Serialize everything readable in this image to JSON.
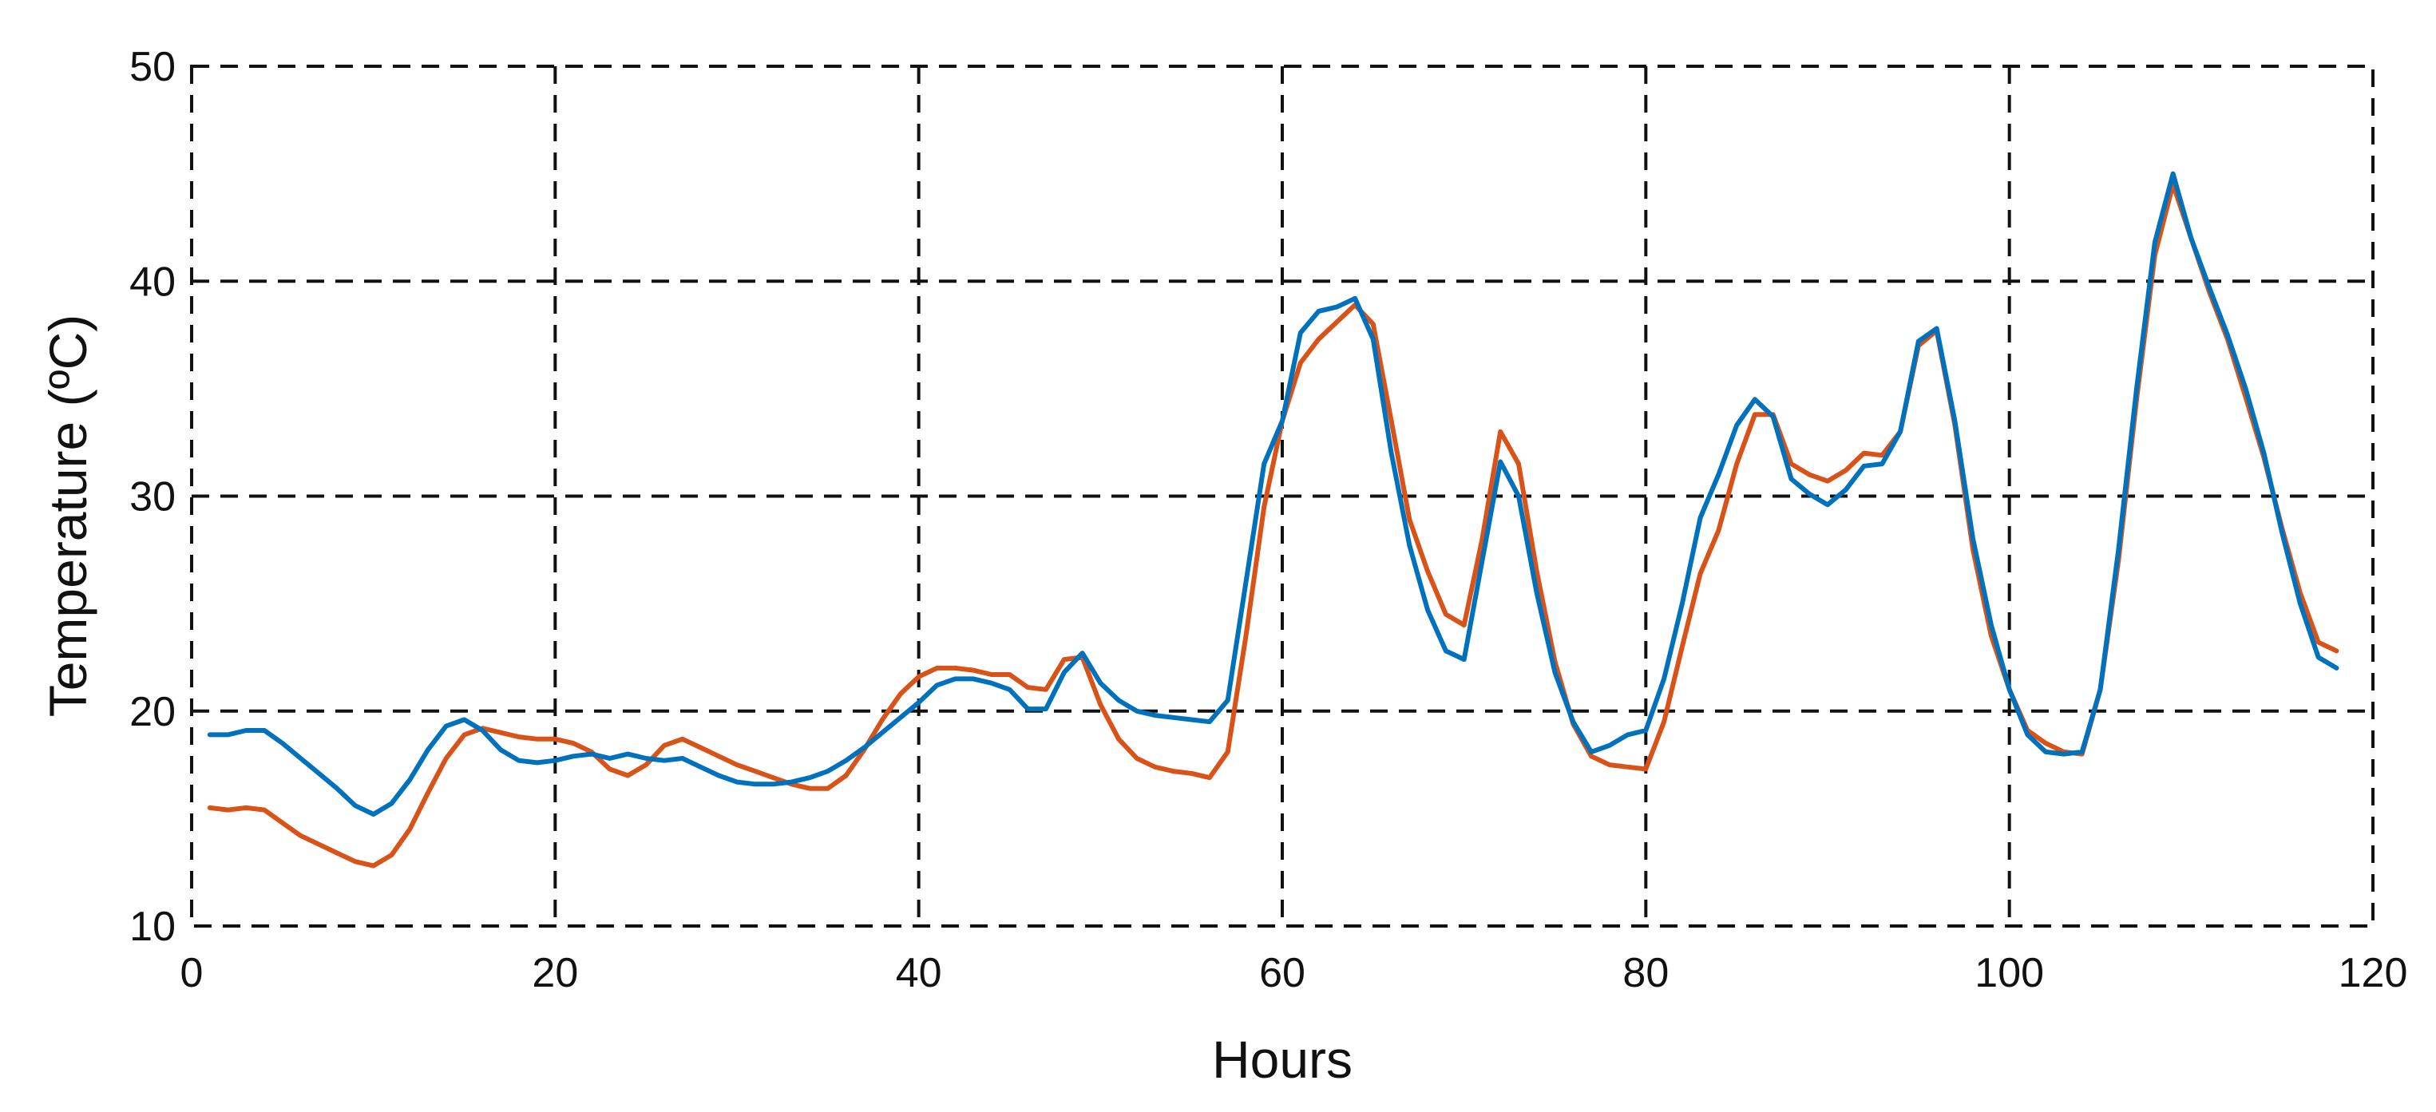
{
  "chart_data": {
    "type": "line",
    "title": "",
    "xlabel": "Hours",
    "ylabel": "Temperature (ºC)",
    "xlim": [
      0,
      120
    ],
    "ylim": [
      10,
      50
    ],
    "xticks": [
      0,
      20,
      40,
      60,
      80,
      100,
      120
    ],
    "yticks": [
      10,
      20,
      30,
      40,
      50
    ],
    "xtick_labels": [
      "0",
      "20",
      "40",
      "60",
      "80",
      "100",
      "120"
    ],
    "ytick_labels": [
      "10",
      "20",
      "30",
      "40",
      "50"
    ],
    "grid": true,
    "grid_style": "dashed",
    "legend": "none",
    "series": [
      {
        "color": "#d95319",
        "points": [
          [
            1,
            15.5
          ],
          [
            2,
            15.4
          ],
          [
            3,
            15.5
          ],
          [
            4,
            15.4
          ],
          [
            5,
            14.8
          ],
          [
            6,
            14.2
          ],
          [
            7,
            13.8
          ],
          [
            8,
            13.4
          ],
          [
            9,
            13.0
          ],
          [
            10,
            12.8
          ],
          [
            11,
            13.3
          ],
          [
            12,
            14.5
          ],
          [
            13,
            16.2
          ],
          [
            14,
            17.8
          ],
          [
            15,
            18.9
          ],
          [
            16,
            19.2
          ],
          [
            17,
            19.0
          ],
          [
            18,
            18.8
          ],
          [
            19,
            18.7
          ],
          [
            20,
            18.7
          ],
          [
            21,
            18.5
          ],
          [
            22,
            18.1
          ],
          [
            23,
            17.3
          ],
          [
            24,
            17.0
          ],
          [
            25,
            17.5
          ],
          [
            26,
            18.4
          ],
          [
            27,
            18.7
          ],
          [
            28,
            18.3
          ],
          [
            29,
            17.9
          ],
          [
            30,
            17.5
          ],
          [
            31,
            17.2
          ],
          [
            32,
            16.9
          ],
          [
            33,
            16.6
          ],
          [
            34,
            16.4
          ],
          [
            35,
            16.4
          ],
          [
            36,
            17.0
          ],
          [
            37,
            18.2
          ],
          [
            38,
            19.6
          ],
          [
            39,
            20.8
          ],
          [
            40,
            21.6
          ],
          [
            41,
            22.0
          ],
          [
            42,
            22.0
          ],
          [
            43,
            21.9
          ],
          [
            44,
            21.7
          ],
          [
            45,
            21.7
          ],
          [
            46,
            21.1
          ],
          [
            47,
            21.0
          ],
          [
            48,
            22.4
          ],
          [
            49,
            22.5
          ],
          [
            50,
            20.3
          ],
          [
            51,
            18.7
          ],
          [
            52,
            17.8
          ],
          [
            53,
            17.4
          ],
          [
            54,
            17.2
          ],
          [
            55,
            17.1
          ],
          [
            56,
            16.9
          ],
          [
            57,
            18.1
          ],
          [
            58,
            23.5
          ],
          [
            59,
            29.5
          ],
          [
            60,
            33.5
          ],
          [
            61,
            36.2
          ],
          [
            62,
            37.3
          ],
          [
            63,
            38.1
          ],
          [
            64,
            38.9
          ],
          [
            65,
            38.0
          ],
          [
            66,
            33.5
          ],
          [
            67,
            28.9
          ],
          [
            68,
            26.5
          ],
          [
            69,
            24.5
          ],
          [
            70,
            24.0
          ],
          [
            71,
            28.0
          ],
          [
            72,
            33.0
          ],
          [
            73,
            31.5
          ],
          [
            74,
            26.5
          ],
          [
            75,
            22.3
          ],
          [
            76,
            19.4
          ],
          [
            77,
            17.9
          ],
          [
            78,
            17.5
          ],
          [
            79,
            17.4
          ],
          [
            80,
            17.3
          ],
          [
            81,
            19.5
          ],
          [
            82,
            23.0
          ],
          [
            83,
            26.4
          ],
          [
            84,
            28.4
          ],
          [
            85,
            31.5
          ],
          [
            86,
            33.8
          ],
          [
            87,
            33.8
          ],
          [
            88,
            31.5
          ],
          [
            89,
            31.0
          ],
          [
            90,
            30.7
          ],
          [
            91,
            31.2
          ],
          [
            92,
            32.0
          ],
          [
            93,
            31.9
          ],
          [
            94,
            33.0
          ],
          [
            95,
            37.0
          ],
          [
            96,
            37.7
          ],
          [
            97,
            33.3
          ],
          [
            98,
            27.5
          ],
          [
            99,
            23.5
          ],
          [
            100,
            21.0
          ],
          [
            101,
            19.1
          ],
          [
            102,
            18.5
          ],
          [
            103,
            18.1
          ],
          [
            104,
            18.0
          ],
          [
            105,
            21.0
          ],
          [
            106,
            27.0
          ],
          [
            107,
            34.5
          ],
          [
            108,
            41.2
          ],
          [
            109,
            44.5
          ],
          [
            110,
            42.0
          ],
          [
            111,
            39.5
          ],
          [
            112,
            37.3
          ],
          [
            113,
            34.6
          ],
          [
            114,
            31.8
          ],
          [
            115,
            28.5
          ],
          [
            116,
            25.5
          ],
          [
            117,
            23.2
          ],
          [
            118,
            22.8
          ]
        ]
      },
      {
        "color": "#0072bd",
        "points": [
          [
            1,
            18.9
          ],
          [
            2,
            18.9
          ],
          [
            3,
            19.1
          ],
          [
            4,
            19.1
          ],
          [
            5,
            18.5
          ],
          [
            6,
            17.8
          ],
          [
            7,
            17.1
          ],
          [
            8,
            16.4
          ],
          [
            9,
            15.6
          ],
          [
            10,
            15.2
          ],
          [
            11,
            15.7
          ],
          [
            12,
            16.8
          ],
          [
            13,
            18.2
          ],
          [
            14,
            19.3
          ],
          [
            15,
            19.6
          ],
          [
            16,
            19.1
          ],
          [
            17,
            18.2
          ],
          [
            18,
            17.7
          ],
          [
            19,
            17.6
          ],
          [
            20,
            17.7
          ],
          [
            21,
            17.9
          ],
          [
            22,
            18.0
          ],
          [
            23,
            17.8
          ],
          [
            24,
            18.0
          ],
          [
            25,
            17.8
          ],
          [
            26,
            17.7
          ],
          [
            27,
            17.8
          ],
          [
            28,
            17.4
          ],
          [
            29,
            17.0
          ],
          [
            30,
            16.7
          ],
          [
            31,
            16.6
          ],
          [
            32,
            16.6
          ],
          [
            33,
            16.7
          ],
          [
            34,
            16.9
          ],
          [
            35,
            17.2
          ],
          [
            36,
            17.7
          ],
          [
            37,
            18.3
          ],
          [
            38,
            19.0
          ],
          [
            39,
            19.7
          ],
          [
            40,
            20.4
          ],
          [
            41,
            21.2
          ],
          [
            42,
            21.5
          ],
          [
            43,
            21.5
          ],
          [
            44,
            21.3
          ],
          [
            45,
            21.0
          ],
          [
            46,
            20.1
          ],
          [
            47,
            20.1
          ],
          [
            48,
            21.8
          ],
          [
            49,
            22.7
          ],
          [
            50,
            21.3
          ],
          [
            51,
            20.5
          ],
          [
            52,
            20.0
          ],
          [
            53,
            19.8
          ],
          [
            54,
            19.7
          ],
          [
            55,
            19.6
          ],
          [
            56,
            19.5
          ],
          [
            57,
            20.5
          ],
          [
            58,
            26.0
          ],
          [
            59,
            31.5
          ],
          [
            60,
            33.5
          ],
          [
            61,
            37.6
          ],
          [
            62,
            38.6
          ],
          [
            63,
            38.8
          ],
          [
            64,
            39.2
          ],
          [
            65,
            37.3
          ],
          [
            66,
            32.0
          ],
          [
            67,
            27.7
          ],
          [
            68,
            24.7
          ],
          [
            69,
            22.8
          ],
          [
            70,
            22.4
          ],
          [
            71,
            27.0
          ],
          [
            72,
            31.6
          ],
          [
            73,
            30.0
          ],
          [
            74,
            25.5
          ],
          [
            75,
            21.8
          ],
          [
            76,
            19.5
          ],
          [
            77,
            18.1
          ],
          [
            78,
            18.4
          ],
          [
            79,
            18.9
          ],
          [
            80,
            19.1
          ],
          [
            81,
            21.5
          ],
          [
            82,
            25.0
          ],
          [
            83,
            29.0
          ],
          [
            84,
            31.0
          ],
          [
            85,
            33.3
          ],
          [
            86,
            34.5
          ],
          [
            87,
            33.7
          ],
          [
            88,
            30.8
          ],
          [
            89,
            30.1
          ],
          [
            90,
            29.6
          ],
          [
            91,
            30.3
          ],
          [
            92,
            31.4
          ],
          [
            93,
            31.5
          ],
          [
            94,
            33.0
          ],
          [
            95,
            37.2
          ],
          [
            96,
            37.8
          ],
          [
            97,
            33.5
          ],
          [
            98,
            28.0
          ],
          [
            99,
            24.0
          ],
          [
            100,
            21.0
          ],
          [
            101,
            18.9
          ],
          [
            102,
            18.1
          ],
          [
            103,
            18.0
          ],
          [
            104,
            18.1
          ],
          [
            105,
            21.0
          ],
          [
            106,
            27.5
          ],
          [
            107,
            35.0
          ],
          [
            108,
            41.8
          ],
          [
            109,
            45.0
          ],
          [
            110,
            42.0
          ],
          [
            111,
            39.7
          ],
          [
            112,
            37.5
          ],
          [
            113,
            35.0
          ],
          [
            114,
            32.0
          ],
          [
            115,
            28.3
          ],
          [
            116,
            25.0
          ],
          [
            117,
            22.5
          ],
          [
            118,
            22.0
          ]
        ]
      }
    ]
  }
}
